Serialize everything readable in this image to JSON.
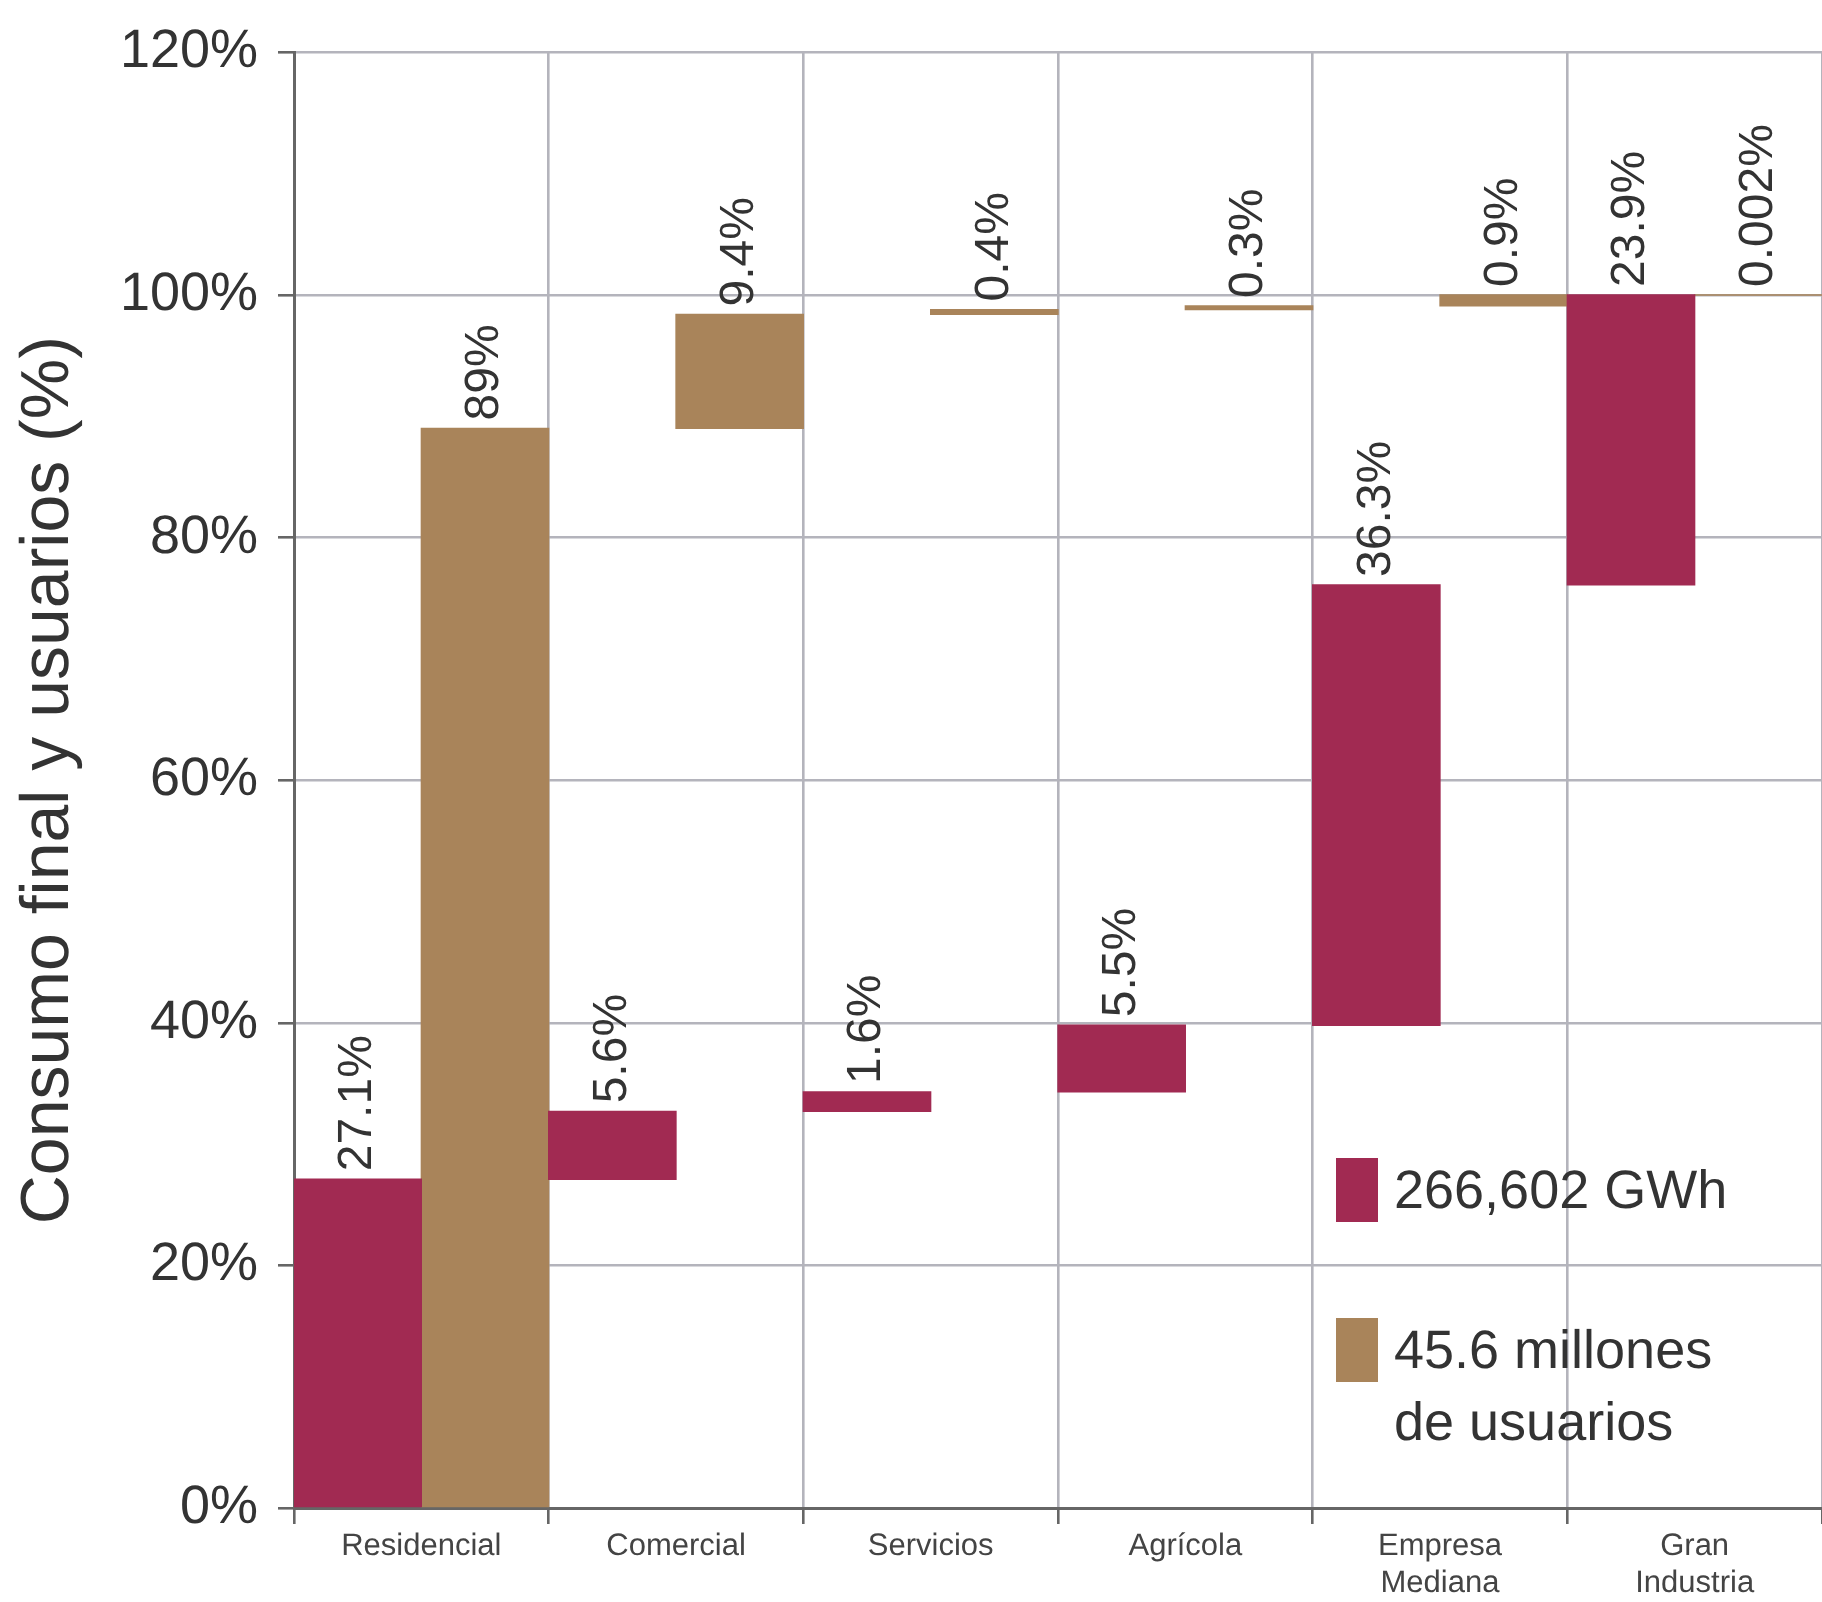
{
  "chart_data": {
    "type": "bar",
    "ylabel": "Consumo final y usuarios (%)",
    "categories": [
      "Residencial",
      "Comercial",
      "Servicios",
      "Agrícola",
      "Empresa Mediana",
      "Gran Industria"
    ],
    "series": [
      {
        "name": "266,602 GWh",
        "color": "#a12a52",
        "values": [
          27.1,
          5.6,
          1.6,
          5.5,
          36.3,
          23.9
        ],
        "base": [
          0,
          27.1,
          32.7,
          34.3,
          39.8,
          76.1
        ],
        "value_labels": [
          "27.1%",
          "5.6%",
          "1.6%",
          "5.5%",
          "36.3%",
          "23.9%"
        ]
      },
      {
        "name": "45.6 millones de usuarios",
        "color": "#a9845a",
        "values": [
          89,
          9.4,
          0.4,
          0.3,
          0.9,
          0.002
        ],
        "base": [
          0,
          89,
          98.4,
          98.8,
          99.1,
          100
        ],
        "value_labels": [
          "89%",
          "9.4%",
          "0.4%",
          "0.3%",
          "0.9%",
          "0.002%"
        ]
      }
    ],
    "ylim": [
      0,
      120
    ],
    "yticks": [
      {
        "value": 0,
        "label": "0%"
      },
      {
        "value": 20,
        "label": "20%"
      },
      {
        "value": 40,
        "label": "40%"
      },
      {
        "value": 60,
        "label": "60%"
      },
      {
        "value": 80,
        "label": "80%"
      },
      {
        "value": 100,
        "label": "100%"
      },
      {
        "value": 120,
        "label": "120%"
      }
    ],
    "grid": true,
    "legend": "bottom right"
  }
}
